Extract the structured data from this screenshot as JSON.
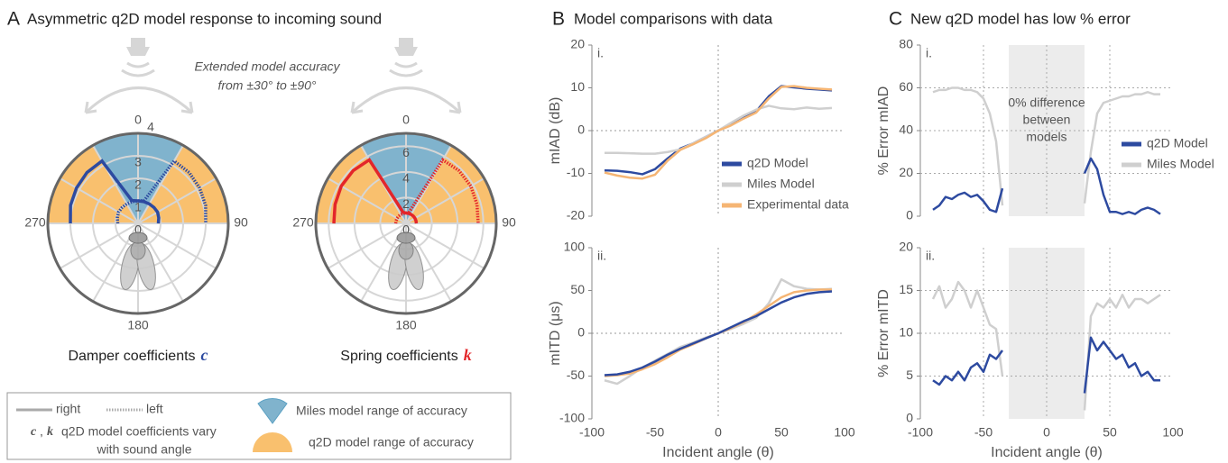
{
  "panels": [
    {
      "label": "A",
      "title": "Asymmetric q2D model response to incoming sound"
    },
    {
      "label": "B",
      "title": "Model comparisons with data"
    },
    {
      "label": "C",
      "title": "New q2D model has low % error"
    }
  ],
  "annotation": [
    "Extended model accuracy",
    "from ±30° to ±90°"
  ],
  "legend": {
    "right": "right",
    "left": "left",
    "separator": ",",
    "coef": [
      "q2D model coefficients vary",
      "with sound angle"
    ],
    "miles": "Miles model range of accuracy",
    "q2d": "q2D model range of accuracy"
  },
  "chart_data": [
    {
      "type": "polar",
      "caption": "Damper coefficients",
      "symbol": "c",
      "color": "#2d4aa0",
      "rlim": [
        0,
        4
      ],
      "rticks": [
        0,
        1,
        2,
        3,
        4
      ],
      "thetaticks": [
        0,
        90,
        180,
        270
      ],
      "ranges": [
        {
          "theta": [
            -90,
            90
          ],
          "color": "#f9c06e"
        },
        {
          "theta": [
            -30,
            30
          ],
          "color": "#80b3cd"
        }
      ],
      "theta": [
        -90,
        -75,
        -60,
        -45,
        -30,
        -15,
        0,
        15,
        30,
        45,
        60,
        75,
        90
      ],
      "series": [
        {
          "style": "solid",
          "values": [
            3.0,
            3.1,
            3.15,
            3.2,
            3.2,
            1.05,
            1.0,
            1.0,
            1.0,
            1.0,
            1.0,
            0.95,
            0.9
          ]
        },
        {
          "style": "dotted",
          "values": [
            0.9,
            0.95,
            1.0,
            1.0,
            1.0,
            1.0,
            1.0,
            1.05,
            3.2,
            3.2,
            3.15,
            3.1,
            3.0
          ]
        }
      ]
    },
    {
      "type": "polar",
      "caption": "Spring coefficients",
      "symbol": "k",
      "color": "#e3262a",
      "rlim": [
        0,
        7
      ],
      "rticks": [
        0,
        2,
        4,
        6
      ],
      "thetaticks": [
        0,
        90,
        180,
        270
      ],
      "ranges": [
        {
          "theta": [
            -90,
            90
          ],
          "color": "#f9c06e"
        },
        {
          "theta": [
            -30,
            30
          ],
          "color": "#80b3cd"
        }
      ],
      "theta": [
        -90,
        -75,
        -60,
        -45,
        -30,
        -15,
        0,
        15,
        30,
        45,
        60,
        75,
        90
      ],
      "series": [
        {
          "style": "solid",
          "values": [
            5.6,
            5.7,
            5.8,
            5.8,
            5.7,
            0.9,
            0.8,
            0.8,
            0.8,
            0.8,
            0.8,
            0.8,
            0.8
          ]
        },
        {
          "style": "dotted",
          "values": [
            0.8,
            0.8,
            0.8,
            0.8,
            0.8,
            0.8,
            0.8,
            0.9,
            5.7,
            5.8,
            5.8,
            5.7,
            5.6
          ]
        }
      ]
    },
    {
      "type": "line",
      "tag": "i.",
      "ylabel": "mIAD (dB)",
      "xlim": [
        -100,
        100
      ],
      "ylim": [
        -20,
        20
      ],
      "yticks": [
        -20,
        -10,
        0,
        10,
        20
      ],
      "zero_lines": true,
      "legend": "lower right",
      "x": [
        -90,
        -80,
        -70,
        -60,
        -50,
        -40,
        -30,
        -20,
        -10,
        0,
        10,
        20,
        30,
        40,
        50,
        60,
        70,
        80,
        90
      ],
      "series": [
        {
          "name": "q2D Model",
          "color": "#2d4aa0",
          "values": [
            -9.3,
            -9.4,
            -9.7,
            -10.2,
            -9,
            -6.5,
            -4.2,
            -3,
            -1.5,
            0,
            1.5,
            3,
            4.5,
            8,
            10.4,
            10.1,
            9.8,
            9.6,
            9.4
          ]
        },
        {
          "name": "Miles Model",
          "color": "#cfcfcf",
          "values": [
            -5.2,
            -5.2,
            -5.3,
            -5.4,
            -5.4,
            -5,
            -4.4,
            -3,
            -1.5,
            0,
            1.8,
            3.5,
            4.9,
            5.8,
            5.2,
            5,
            5.4,
            5.1,
            5.3
          ]
        },
        {
          "name": "Experimental data",
          "color": "#f5b574",
          "values": [
            -9.8,
            -10.5,
            -11,
            -11.2,
            -10.3,
            -7,
            -4.5,
            -3.2,
            -1.8,
            0,
            1.2,
            2.8,
            4.2,
            7.5,
            10.2,
            10.4,
            10,
            9.8,
            9.6
          ]
        }
      ]
    },
    {
      "type": "line",
      "tag": "ii.",
      "ylabel": "mITD (μs)",
      "xlabel": "Incident angle (θ)",
      "xlim": [
        -100,
        100
      ],
      "ylim": [
        -100,
        100
      ],
      "xticks": [
        -100,
        -50,
        0,
        50,
        100
      ],
      "yticks": [
        -100,
        -50,
        0,
        50,
        100
      ],
      "zero_lines": true,
      "x": [
        -90,
        -80,
        -70,
        -60,
        -50,
        -40,
        -30,
        -20,
        -10,
        0,
        10,
        20,
        30,
        40,
        50,
        60,
        70,
        80,
        90
      ],
      "series": [
        {
          "color": "#cfcfcf",
          "values": [
            -55,
            -59,
            -50,
            -40,
            -32,
            -24,
            -16,
            -11,
            -5,
            0,
            5,
            11,
            18,
            35,
            63,
            55,
            52,
            51,
            52
          ]
        },
        {
          "color": "#f5b574",
          "values": [
            -50,
            -49,
            -47,
            -42,
            -36,
            -28,
            -19,
            -13,
            -6,
            0,
            6,
            13,
            22,
            32,
            42,
            48,
            50,
            51,
            51
          ]
        },
        {
          "color": "#2d4aa0",
          "values": [
            -49,
            -48,
            -45,
            -40,
            -33,
            -25,
            -18,
            -12,
            -6,
            0,
            7,
            14,
            20,
            28,
            36,
            42,
            46,
            48,
            49
          ]
        }
      ]
    },
    {
      "type": "line",
      "tag": "i.",
      "ylabel": "% Error mIAD",
      "xlim": [
        -100,
        100
      ],
      "ylim": [
        0,
        80
      ],
      "xticks": [
        -100,
        -50,
        0,
        50,
        100
      ],
      "xtick_labels": false,
      "yticks": [
        0,
        20,
        40,
        60,
        80
      ],
      "grid": true,
      "shade": [
        -30,
        30
      ],
      "annotation": [
        "0% difference",
        "between",
        "models"
      ],
      "legend": "right",
      "x": [
        -90,
        -85,
        -80,
        -75,
        -70,
        -65,
        -60,
        -55,
        -50,
        -45,
        -40,
        -35,
        -30,
        -25,
        -20,
        -15,
        -10,
        -5,
        0,
        5,
        10,
        15,
        20,
        25,
        30,
        35,
        40,
        45,
        50,
        55,
        60,
        65,
        70,
        75,
        80,
        85,
        90
      ],
      "series": [
        {
          "name": "Miles Model",
          "color": "#cfcfcf",
          "values": [
            58,
            59,
            59,
            60,
            60,
            59,
            59,
            58,
            55,
            48,
            35,
            5,
            null,
            null,
            null,
            null,
            null,
            null,
            null,
            null,
            null,
            null,
            null,
            null,
            6,
            30,
            48,
            53,
            54,
            55,
            56,
            56,
            57,
            57,
            58,
            57,
            57
          ]
        },
        {
          "name": "q2D Model",
          "color": "#2d4aa0",
          "values": [
            3,
            5,
            9,
            8,
            10,
            11,
            9,
            10,
            7,
            3,
            2,
            13,
            null,
            null,
            null,
            null,
            null,
            null,
            null,
            null,
            null,
            null,
            null,
            null,
            20,
            27,
            22,
            10,
            2,
            2,
            1,
            2,
            1,
            3,
            4,
            3,
            1
          ]
        }
      ]
    },
    {
      "type": "line",
      "tag": "ii.",
      "ylabel": "% Error mITD",
      "xlabel": "Incident angle (θ)",
      "xlim": [
        -100,
        100
      ],
      "ylim": [
        0,
        20
      ],
      "xticks": [
        -100,
        -50,
        0,
        50,
        100
      ],
      "yticks": [
        0,
        5,
        10,
        15,
        20
      ],
      "grid": true,
      "shade": [
        -30,
        30
      ],
      "x": [
        -90,
        -85,
        -80,
        -75,
        -70,
        -65,
        -60,
        -55,
        -50,
        -45,
        -40,
        -35,
        -30,
        -25,
        -20,
        -15,
        -10,
        -5,
        0,
        5,
        10,
        15,
        20,
        25,
        30,
        35,
        40,
        45,
        50,
        55,
        60,
        65,
        70,
        75,
        80,
        85,
        90
      ],
      "series": [
        {
          "color": "#cfcfcf",
          "values": [
            14,
            15.5,
            13,
            14,
            16,
            15,
            13,
            15,
            13,
            11,
            10.5,
            5,
            null,
            null,
            null,
            null,
            null,
            null,
            null,
            null,
            null,
            null,
            null,
            null,
            1,
            12,
            13.5,
            13,
            14,
            13,
            14.5,
            13,
            14,
            14,
            13.5,
            14,
            14.5
          ]
        },
        {
          "color": "#2d4aa0",
          "values": [
            4.5,
            4,
            5,
            4.5,
            5.5,
            4.5,
            6,
            6.5,
            5.5,
            7.5,
            7,
            8,
            null,
            null,
            null,
            null,
            null,
            null,
            null,
            null,
            null,
            null,
            null,
            null,
            3,
            9.5,
            8,
            9,
            8,
            7,
            7.5,
            6,
            6.5,
            5,
            5.5,
            4.5,
            4.5
          ]
        }
      ]
    }
  ]
}
